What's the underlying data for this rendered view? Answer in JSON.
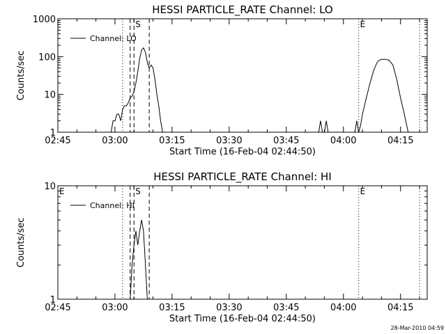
{
  "footer_timestamp": "28-Mar-2010 04:59",
  "chart_data": [
    {
      "type": "line",
      "title": "HESSI PARTICLE_RATE Channel: LO",
      "xlabel": "Start Time (16-Feb-04 02:44:50)",
      "ylabel": "Counts/sec",
      "yscale": "log",
      "xlim": [
        "02:45",
        "04:22"
      ],
      "ylim": [
        1,
        1000
      ],
      "x_ticks": [
        "02:45",
        "03:00",
        "03:15",
        "03:30",
        "03:45",
        "04:00",
        "04:15"
      ],
      "y_ticks": [
        "1",
        "10",
        "100",
        "1000"
      ],
      "legend": {
        "position": "top-left",
        "entries": [
          "Channel: LO"
        ]
      },
      "markers": [
        {
          "time": "03:02",
          "style": "dotted",
          "label": ""
        },
        {
          "time": "03:04",
          "style": "dashed",
          "label": ""
        },
        {
          "time": "03:05",
          "style": "dashed",
          "label": "S"
        },
        {
          "time": "03:09",
          "style": "dashed",
          "label": ""
        },
        {
          "time": "04:04",
          "style": "dotted",
          "label": "E"
        },
        {
          "time": "04:20",
          "style": "dotted",
          "label": ""
        }
      ],
      "series": [
        {
          "name": "Channel: LO",
          "segments": [
            [
              [
                "02:59",
                1
              ],
              [
                "02:59.5",
                2
              ],
              [
                "03:00",
                2
              ],
              [
                "03:00.5",
                3
              ],
              [
                "03:01",
                3
              ],
              [
                "03:01.5",
                2
              ],
              [
                "03:02",
                4
              ],
              [
                "03:02.5",
                5
              ],
              [
                "03:03",
                5
              ],
              [
                "03:03.5",
                6
              ],
              [
                "03:04",
                8
              ],
              [
                "03:04.5",
                9
              ],
              [
                "03:05",
                12
              ],
              [
                "03:05.5",
                20
              ],
              [
                "03:06",
                40
              ],
              [
                "03:06.5",
                90
              ],
              [
                "03:07",
                150
              ],
              [
                "03:07.5",
                170
              ],
              [
                "03:08",
                130
              ],
              [
                "03:08.5",
                70
              ],
              [
                "03:09",
                50
              ],
              [
                "03:09.5",
                60
              ],
              [
                "03:10",
                50
              ],
              [
                "03:10.5",
                25
              ],
              [
                "03:11",
                10
              ],
              [
                "03:11.5",
                5
              ],
              [
                "03:12",
                2
              ],
              [
                "03:12.5",
                1
              ]
            ],
            [
              [
                "03:53.5",
                1
              ],
              [
                "03:54",
                2
              ],
              [
                "03:54.5",
                1
              ]
            ],
            [
              [
                "03:55",
                1
              ],
              [
                "03:55.5",
                2
              ],
              [
                "03:56",
                1
              ]
            ],
            [
              [
                "04:03",
                1
              ],
              [
                "04:03.5",
                2
              ],
              [
                "04:04",
                1
              ]
            ],
            [
              [
                "04:04",
                1
              ],
              [
                "04:04.5",
                1.5
              ],
              [
                "04:05",
                3
              ],
              [
                "04:06",
                8
              ],
              [
                "04:07",
                20
              ],
              [
                "04:08",
                45
              ],
              [
                "04:09",
                75
              ],
              [
                "04:10",
                85
              ],
              [
                "04:11",
                85
              ],
              [
                "04:12",
                80
              ],
              [
                "04:13",
                60
              ],
              [
                "04:14",
                25
              ],
              [
                "04:15",
                8
              ],
              [
                "04:16",
                3
              ],
              [
                "04:17",
                1
              ]
            ]
          ]
        }
      ]
    },
    {
      "type": "line",
      "title": "HESSI PARTICLE_RATE Channel: HI",
      "xlabel": "Start Time (16-Feb-04 02:44:50)",
      "ylabel": "Counts/sec",
      "yscale": "log",
      "xlim": [
        "02:45",
        "04:22"
      ],
      "ylim": [
        1,
        10
      ],
      "x_ticks": [
        "02:45",
        "03:00",
        "03:15",
        "03:30",
        "03:45",
        "04:00",
        "04:15"
      ],
      "y_ticks": [
        "1",
        "10"
      ],
      "legend": {
        "position": "top-left",
        "entries": [
          "Channel: HI"
        ]
      },
      "markers": [
        {
          "time": "02:45",
          "style": "none",
          "label": "E"
        },
        {
          "time": "03:02",
          "style": "dotted",
          "label": ""
        },
        {
          "time": "03:04",
          "style": "dashed",
          "label": ""
        },
        {
          "time": "03:05",
          "style": "dashed",
          "label": "S"
        },
        {
          "time": "03:09",
          "style": "dashed",
          "label": ""
        },
        {
          "time": "04:04",
          "style": "dotted",
          "label": "E"
        },
        {
          "time": "04:20",
          "style": "dotted",
          "label": ""
        }
      ],
      "series": [
        {
          "name": "Channel: HI",
          "segments": [
            [
              [
                "03:04",
                1
              ],
              [
                "03:04.5",
                2
              ],
              [
                "03:05",
                3
              ],
              [
                "03:05.5",
                4
              ],
              [
                "03:06",
                3
              ],
              [
                "03:06.5",
                4
              ],
              [
                "03:07",
                5
              ],
              [
                "03:07.5",
                4
              ],
              [
                "03:08",
                2
              ],
              [
                "03:08.5",
                1
              ]
            ]
          ]
        }
      ]
    }
  ]
}
